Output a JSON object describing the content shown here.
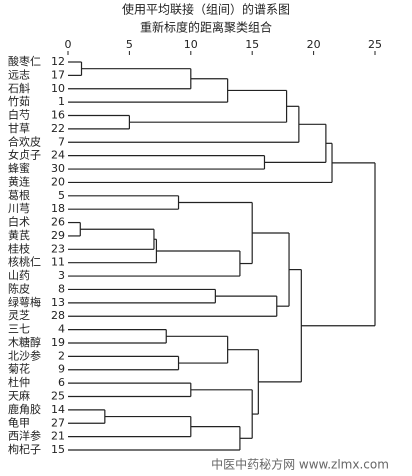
{
  "chart_data": {
    "type": "dendrogram",
    "title": "使用平均联接（组间）的谱系图",
    "subtitle": "重新标度的距离聚类组合",
    "xlim": [
      0,
      25
    ],
    "xticks": [
      0,
      5,
      10,
      15,
      20,
      25
    ],
    "color": "#222222",
    "leaves": [
      {
        "name": "酸枣仁",
        "case": 12
      },
      {
        "name": "远志",
        "case": 17
      },
      {
        "name": "石斛",
        "case": 10
      },
      {
        "name": "竹茹",
        "case": 1
      },
      {
        "name": "白芍",
        "case": 16
      },
      {
        "name": "甘草",
        "case": 22
      },
      {
        "name": "合欢皮",
        "case": 7
      },
      {
        "name": "女贞子",
        "case": 24
      },
      {
        "name": "蜂蜜",
        "case": 30
      },
      {
        "name": "黄连",
        "case": 20
      },
      {
        "name": "葛根",
        "case": 5
      },
      {
        "name": "川芎",
        "case": 18
      },
      {
        "name": "白术",
        "case": 26
      },
      {
        "name": "黄芪",
        "case": 29
      },
      {
        "name": "桂枝",
        "case": 23
      },
      {
        "name": "核桃仁",
        "case": 11
      },
      {
        "name": "山药",
        "case": 3
      },
      {
        "name": "陈皮",
        "case": 8
      },
      {
        "name": "绿萼梅",
        "case": 13
      },
      {
        "name": "灵芝",
        "case": 28
      },
      {
        "name": "三七",
        "case": 4
      },
      {
        "name": "木糖醇",
        "case": 19
      },
      {
        "name": "北沙参",
        "case": 2
      },
      {
        "name": "菊花",
        "case": 9
      },
      {
        "name": "杜仲",
        "case": 6
      },
      {
        "name": "天麻",
        "case": 25
      },
      {
        "name": "鹿角胶",
        "case": 14
      },
      {
        "name": "龟甲",
        "case": 27
      },
      {
        "name": "西洋参",
        "case": 21
      },
      {
        "name": "枸杞子",
        "case": 15
      }
    ],
    "tree": {
      "height": 25,
      "children": [
        {
          "height": 21.5,
          "children": [
            {
              "height": 21,
              "children": [
                {
                  "height": 18.8,
                  "children": [
                    {
                      "height": 17.8,
                      "children": [
                        {
                          "height": 13,
                          "children": [
                            {
                              "height": 10,
                              "children": [
                                {
                                  "height": 1.1,
                                  "children": [
                                    12,
                                    17
                                  ]
                                },
                                10
                              ]
                            },
                            1
                          ]
                        },
                        {
                          "height": 5,
                          "children": [
                            16,
                            22
                          ]
                        }
                      ]
                    },
                    7
                  ]
                },
                {
                  "height": 16,
                  "children": [
                    24,
                    30
                  ]
                }
              ]
            },
            20
          ]
        },
        {
          "height": 19,
          "children": [
            {
              "height": 18,
              "children": [
                {
                  "height": 15,
                  "children": [
                    {
                      "height": 9,
                      "children": [
                        5,
                        18
                      ]
                    },
                    {
                      "height": 14,
                      "children": [
                        {
                          "height": 7.2,
                          "children": [
                            {
                              "height": 7,
                              "children": [
                                {
                                  "height": 1,
                                  "children": [
                                    26,
                                    29
                                  ]
                                },
                                23
                              ]
                            },
                            11
                          ]
                        },
                        3
                      ]
                    }
                  ]
                },
                {
                  "height": 17,
                  "children": [
                    {
                      "height": 12,
                      "children": [
                        8,
                        13
                      ]
                    },
                    28
                  ]
                }
              ]
            },
            {
              "height": 15.5,
              "children": [
                {
                  "height": 13,
                  "children": [
                    {
                      "height": 8,
                      "children": [
                        4,
                        19
                      ]
                    },
                    {
                      "height": 9,
                      "children": [
                        2,
                        9
                      ]
                    }
                  ]
                },
                {
                  "height": 15,
                  "children": [
                    {
                      "height": 10,
                      "children": [
                        6,
                        25
                      ]
                    },
                    {
                      "height": 14,
                      "children": [
                        {
                          "height": 10,
                          "children": [
                            {
                              "height": 3,
                              "children": [
                                14,
                                27
                              ]
                            },
                            21
                          ]
                        },
                        15
                      ]
                    }
                  ]
                }
              ]
            }
          ]
        }
      ]
    },
    "watermark": "中医中药秘方网 www.zlmx.com"
  }
}
